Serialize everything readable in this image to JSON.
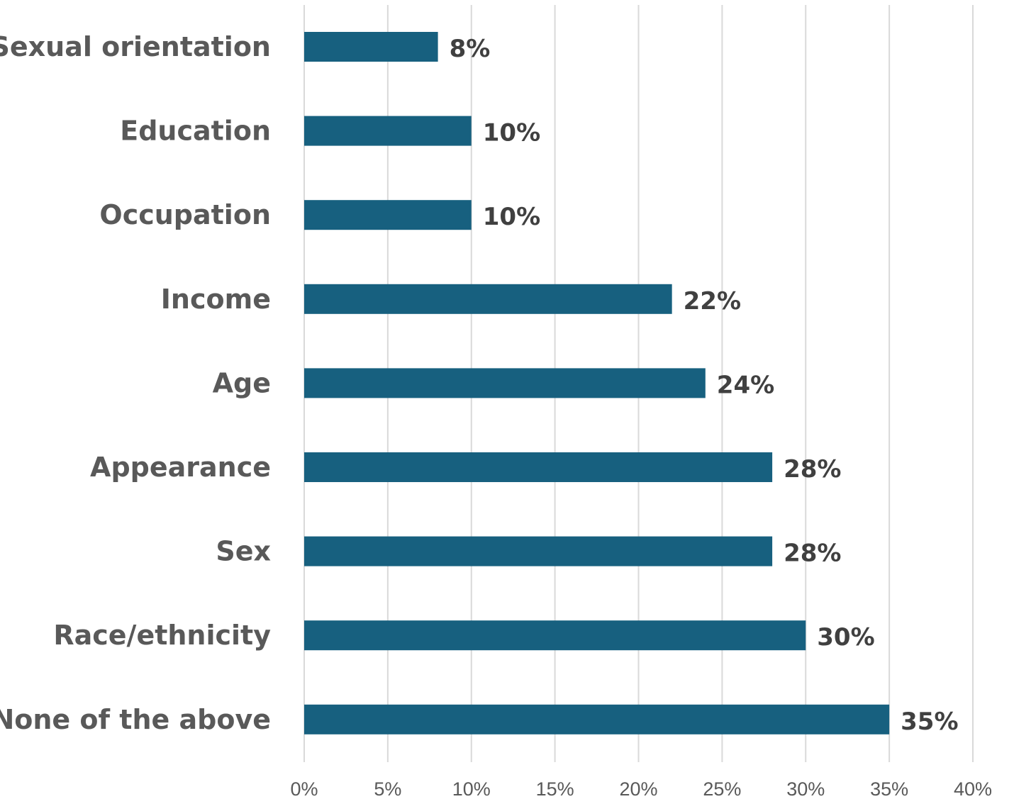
{
  "chart_data": {
    "type": "bar",
    "orientation": "horizontal",
    "categories": [
      "Sexual orientation",
      "Education",
      "Occupation",
      "Income",
      "Age",
      "Appearance",
      "Sex",
      "Race/ethnicity",
      "None of the above"
    ],
    "values": [
      8,
      10,
      10,
      22,
      24,
      28,
      28,
      30,
      35
    ],
    "value_labels": [
      "8%",
      "10%",
      "10%",
      "22%",
      "24%",
      "28%",
      "28%",
      "30%",
      "35%"
    ],
    "title": "",
    "xlabel": "",
    "ylabel": "",
    "xlim": [
      0,
      40
    ],
    "x_ticks": [
      0,
      5,
      10,
      15,
      20,
      25,
      30,
      35,
      40
    ],
    "x_tick_labels": [
      "0%",
      "5%",
      "10%",
      "15%",
      "20%",
      "25%",
      "30%",
      "35%",
      "40%"
    ],
    "grid": "vertical",
    "legend": "none",
    "bar_color": "#17607f"
  }
}
